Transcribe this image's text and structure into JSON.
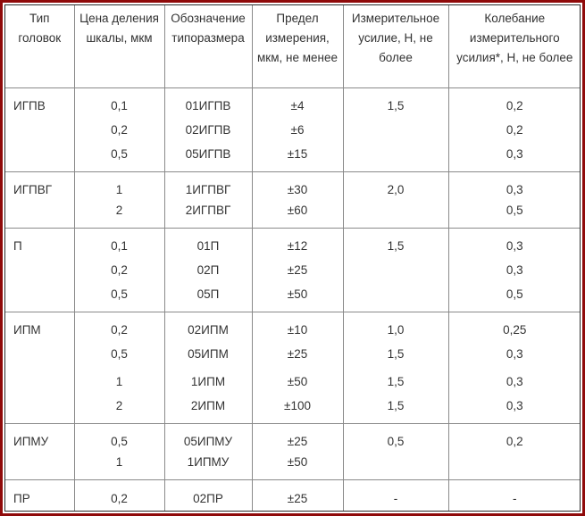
{
  "table": {
    "headers": [
      "Тип головок",
      "Цена деления шкалы, мкм",
      "Обозначение типоразмера",
      "Предел измерения, мкм, не менее",
      "Измерительное усилие, Н, не более",
      "Колебание измерительного усилия*, Н, не более"
    ],
    "rows": [
      [
        "ИГПВ",
        "0,1",
        "01ИГПВ",
        "±4",
        "1,5",
        "0,2"
      ],
      [
        "",
        "0,2",
        "02ИГПВ",
        "±6",
        "",
        "0,2"
      ],
      [
        "",
        "0,5",
        "05ИГПВ",
        "±15",
        "",
        "0,3"
      ],
      [
        "ИГПВГ",
        "1",
        "1ИГПВГ",
        "±30",
        "2,0",
        "0,3"
      ],
      [
        "",
        "2",
        "2ИГПВГ",
        "±60",
        "",
        "0,5"
      ],
      [
        "П",
        "0,1",
        "01П",
        "±12",
        "1,5",
        "0,3"
      ],
      [
        "",
        "0,2",
        "02П",
        "±25",
        "",
        "0,3"
      ],
      [
        "",
        "0,5",
        "05П",
        "±50",
        "",
        "0,5"
      ],
      [
        "ИПМ",
        "0,2",
        "02ИПМ",
        "±10",
        "1,0",
        "0,25"
      ],
      [
        "",
        "0,5",
        "05ИПМ",
        "±25",
        "1,5",
        "0,3"
      ],
      [
        "",
        "1",
        "1ИПМ",
        "±50",
        "1,5",
        "0,3"
      ],
      [
        "",
        "2",
        "2ИПМ",
        "±100",
        "1,5",
        "0,3"
      ],
      [
        "ИПМУ",
        "0,5",
        "05ИПМУ",
        "±25",
        "0,5",
        "0,2"
      ],
      [
        "",
        "1",
        "1ИПМУ",
        "±50",
        "",
        ""
      ],
      [
        "ПР",
        "0,2",
        "02ПР",
        "±25",
        "-",
        "-"
      ]
    ]
  },
  "colors": {
    "frame": "#8f0a0a",
    "grid": "#8a8a8a",
    "text": "#333333"
  }
}
